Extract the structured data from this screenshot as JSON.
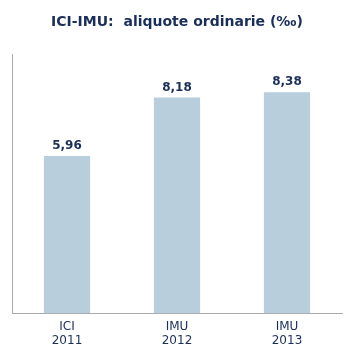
{
  "chart_data": {
    "type": "bar",
    "title": "ICI-IMU:  aliquote ordinarie (‰)",
    "categories": [
      "ICI\n2011",
      "IMU\n2012",
      "IMU\n2013"
    ],
    "values": [
      5.96,
      8.18,
      8.38
    ],
    "value_labels": [
      "5,96",
      "8,18",
      "8,38"
    ],
    "color": "#b8cedd",
    "ylim": [
      0,
      9.8
    ],
    "grid": false,
    "data_labels": true,
    "tick_labels": "x"
  }
}
